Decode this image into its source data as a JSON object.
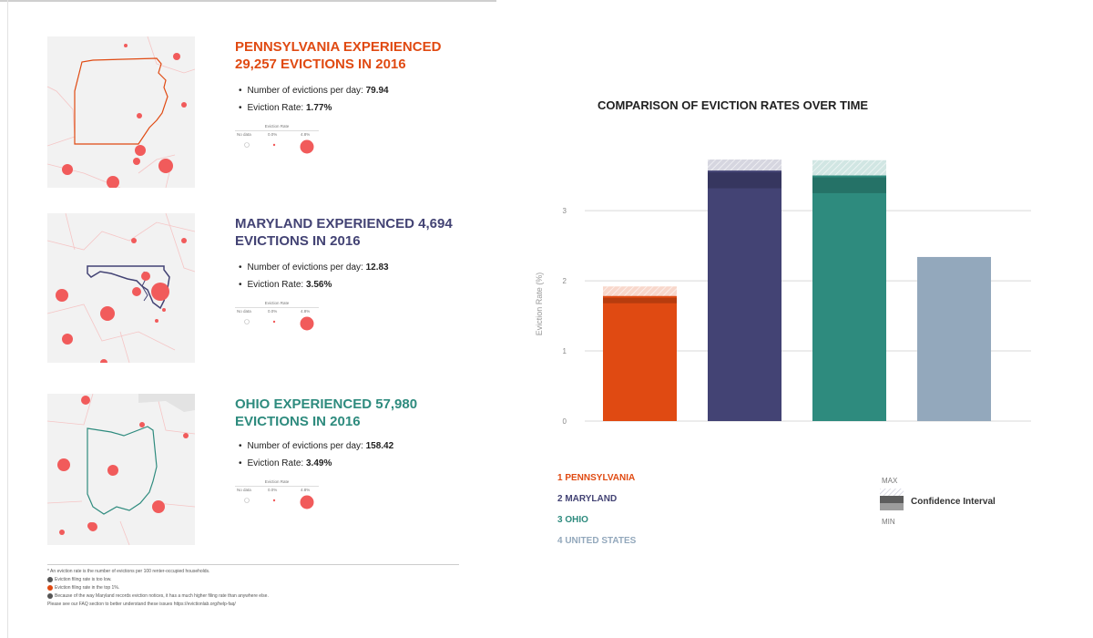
{
  "colors": {
    "pennsylvania": "#e04a12",
    "maryland": "#434374",
    "ohio": "#2e8b7e",
    "united_states": "#93a8bc",
    "dot": "#f15b5b",
    "grid": "#d9d9d9"
  },
  "states": [
    {
      "key": "pa",
      "title": "PENNSYLVANIA EXPERIENCED 29,257 EVICTIONS IN 2016",
      "color": "#e04a12",
      "evictions_per_day_label": "Number of evictions per day:",
      "evictions_per_day": "79.94",
      "rate_label": "Eviction Rate:",
      "rate": "1.77%"
    },
    {
      "key": "md",
      "title": "MARYLAND EXPERIENCED 4,694 EVICTIONS IN 2016",
      "color": "#434374",
      "evictions_per_day_label": "Number of evictions per day:",
      "evictions_per_day": "12.83",
      "rate_label": "Eviction Rate:",
      "rate": "3.56%"
    },
    {
      "key": "oh",
      "title": "OHIO EXPERIENCED 57,980 EVICTIONS IN 2016",
      "color": "#2e8b7e",
      "evictions_per_day_label": "Number of evictions per day:",
      "evictions_per_day": "158.42",
      "rate_label": "Eviction Rate:",
      "rate": "3.49%"
    }
  ],
  "rate_legend": {
    "title": "Eviction Rate",
    "no_data": "No data",
    "low": "0.0%",
    "high": "4.8%"
  },
  "footnotes": [
    "* An eviction rate is the number of evictions per 100 renter-occupied households.",
    "Eviction filing rate is too low.",
    "Eviction filing rate in the top 1%.",
    "Because of the way Maryland records eviction notices, it has a much higher filing rate than anywhere else.",
    "Please see our FAQ section to better understand these issues https://evictionlab.org/help-faq/"
  ],
  "chart_data": {
    "type": "bar",
    "title": "COMPARISON OF EVICTION RATES OVER TIME",
    "ylabel": "Eviction Rate (%)",
    "xlabel": "",
    "ylim": [
      0,
      3.6
    ],
    "yticks": [
      "0",
      "1",
      "2",
      "3"
    ],
    "grid": true,
    "categories": [
      "1 PENNSYLVANIA",
      "2 MARYLAND",
      "3 OHIO",
      "4 UNITED STATES"
    ],
    "values": [
      1.77,
      3.56,
      3.49,
      2.34
    ],
    "ci_min": [
      1.68,
      3.32,
      3.25,
      null
    ],
    "ci_max": [
      1.92,
      3.78,
      3.72,
      null
    ],
    "colors": [
      "#e04a12",
      "#434374",
      "#2e8b7e",
      "#93a8bc"
    ],
    "legend": {
      "ci_title": "Confidence Interval",
      "max_label": "MAX",
      "min_label": "MIN"
    }
  }
}
